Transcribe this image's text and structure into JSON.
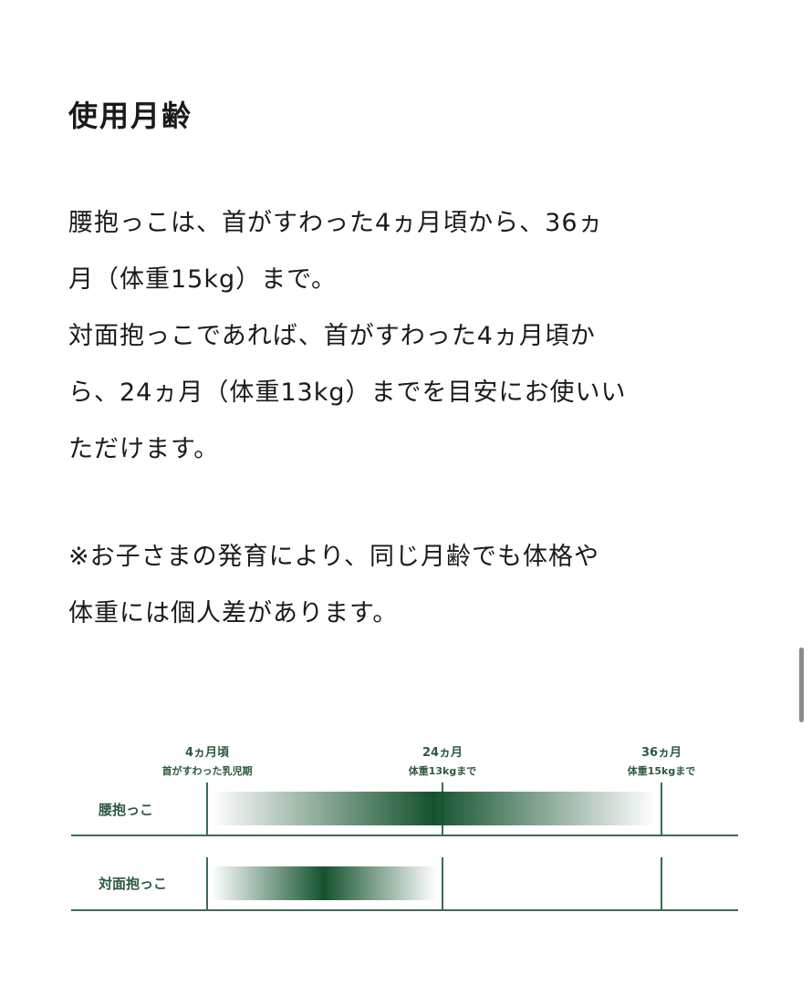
{
  "section": {
    "title": "使用月齢",
    "paragraph_lines": [
      "腰抱っこは、首がすわった4ヵ月頃から、36ヵ",
      "月（体重15kg）まで。",
      "対面抱っこであれば、首がすわった4ヵ月頃か",
      "ら、24ヵ月（体重13kg）までを目安にお使いい",
      "ただけます。"
    ],
    "note_lines": [
      "※お子さまの発育により、同じ月齢でも体格や",
      "体重には個人差があります。"
    ]
  },
  "chart_data": {
    "type": "bar",
    "ticks": [
      {
        "label": "4ヵ月頃",
        "sub": "首がすわった乳児期",
        "month": 4
      },
      {
        "label": "24ヵ月",
        "sub": "体重13kgまで",
        "month": 24
      },
      {
        "label": "36ヵ月",
        "sub": "体重15kgまで",
        "month": 36
      }
    ],
    "rows": [
      {
        "label": "腰抱っこ",
        "from": 4,
        "to": 36
      },
      {
        "label": "対面抱っこ",
        "from": 4,
        "to": 24
      }
    ],
    "bar_color": "#14522e",
    "line_color": "#3d6b52"
  }
}
